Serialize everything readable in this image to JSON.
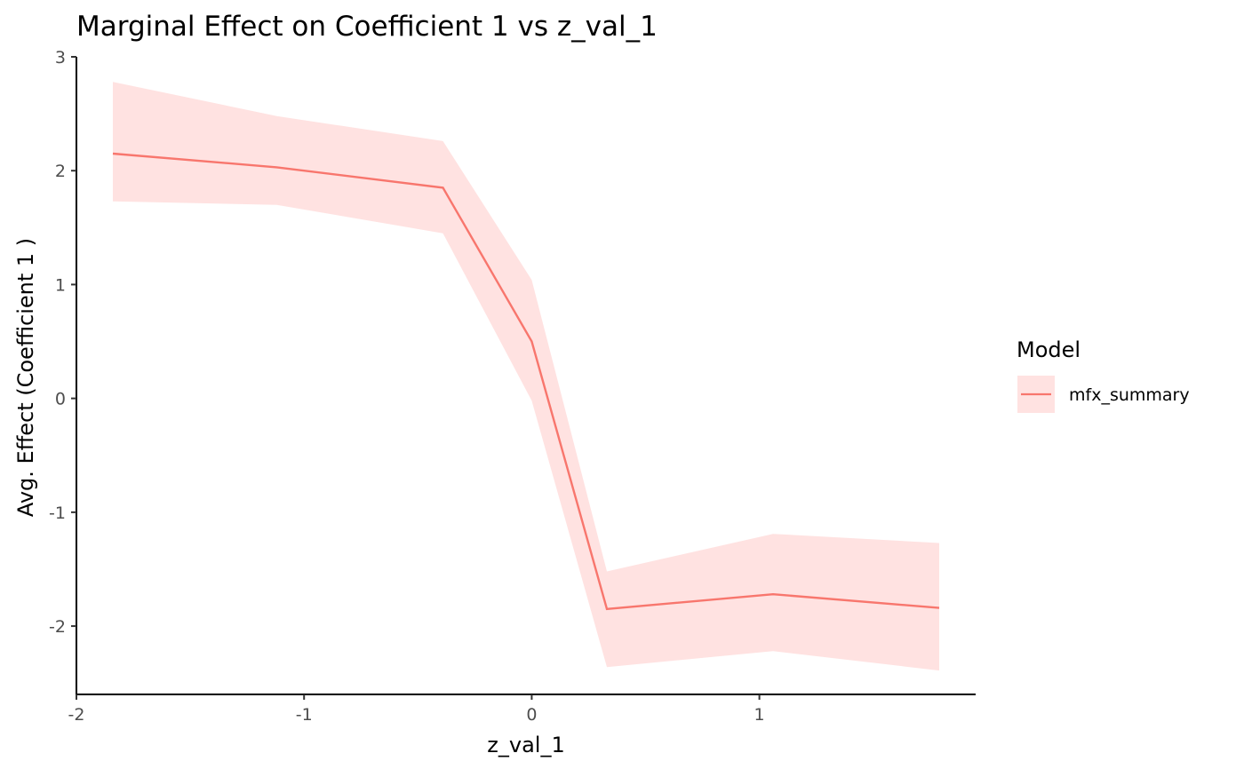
{
  "chart_data": {
    "type": "line",
    "title": "Marginal Effect on Coefficient 1 vs z_val_1",
    "xlabel": "z_val_1",
    "ylabel": "Avg. Effect (Coefficient 1 )",
    "xlim": [
      -2.0,
      1.95
    ],
    "ylim": [
      -2.6,
      3.0
    ],
    "x_ticks": [
      -2,
      -1,
      0,
      1
    ],
    "x_tick_labels": [
      "-2",
      "-1",
      "0",
      "1"
    ],
    "y_ticks": [
      3,
      2,
      1,
      0,
      -1,
      -2
    ],
    "y_tick_labels": [
      "3",
      "2",
      "1",
      "0",
      "-1",
      "-2"
    ],
    "grid": false,
    "legend": {
      "title": "Model",
      "position": "right"
    },
    "series": [
      {
        "name": "mfx_summary",
        "color": "#F8766D",
        "ribbon_color": "#FFE2E1",
        "x": [
          -1.84,
          -1.12,
          -0.39,
          0.0,
          0.33,
          1.06,
          1.79
        ],
        "y": [
          2.15,
          2.03,
          1.85,
          0.5,
          -1.85,
          -1.72,
          -1.84
        ],
        "lower": [
          1.73,
          1.7,
          1.45,
          -0.02,
          -2.36,
          -2.22,
          -2.39
        ],
        "upper": [
          2.78,
          2.48,
          2.26,
          1.04,
          -1.52,
          -1.19,
          -1.27
        ]
      }
    ]
  }
}
